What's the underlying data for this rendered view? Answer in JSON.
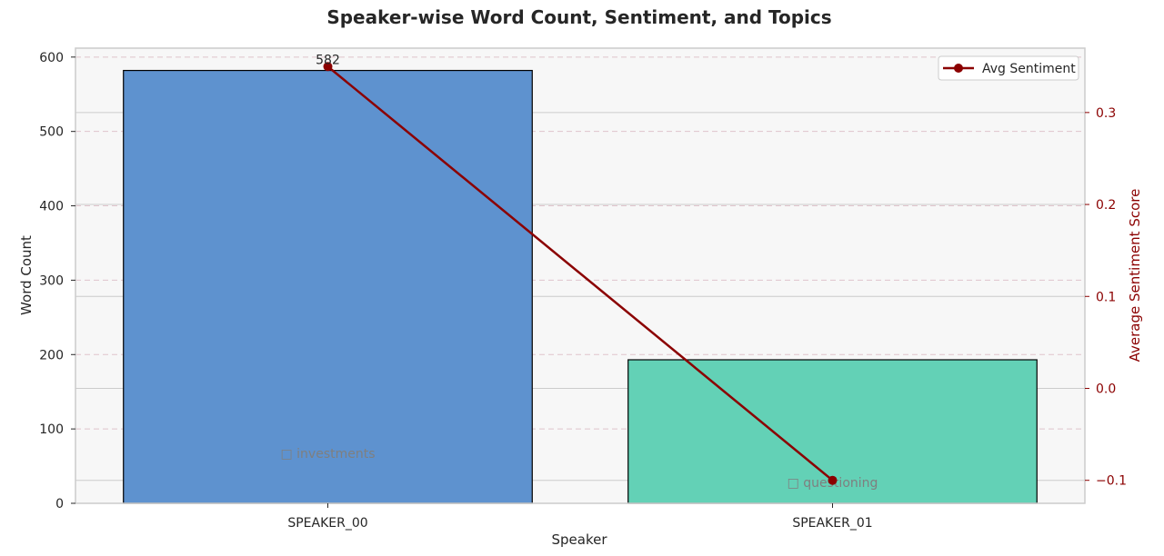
{
  "chart_data": {
    "type": "bar",
    "title": "Speaker-wise Word Count, Sentiment, and Topics",
    "xlabel": "Speaker",
    "ylabel": "Word Count",
    "y2label": "Average Sentiment Score",
    "categories": [
      "SPEAKER_00",
      "SPEAKER_01"
    ],
    "series": [
      {
        "name": "Word Count",
        "axis": "left",
        "values": [
          582,
          193
        ],
        "colors": [
          "#5e92cf",
          "#63d1b6"
        ]
      },
      {
        "name": "Avg Sentiment",
        "axis": "right",
        "type": "line",
        "values": [
          0.35,
          -0.1
        ],
        "color": "#8b0000"
      }
    ],
    "data_labels": [
      "582"
    ],
    "topics": [
      "□ investments",
      "□ questioning"
    ],
    "ylim": [
      0,
      612
    ],
    "y2lim": [
      -0.125,
      0.37
    ],
    "yticks": [
      0,
      100,
      200,
      300,
      400,
      500,
      600
    ],
    "y2ticks": [
      -0.1,
      0.0,
      0.1,
      0.2,
      0.3
    ],
    "ytick_labels": [
      "0",
      "100",
      "200",
      "300",
      "400",
      "500",
      "600"
    ],
    "y2tick_labels": [
      "−0.1",
      "0.0",
      "0.1",
      "0.2",
      "0.3"
    ],
    "legend": {
      "entries": [
        "Avg Sentiment"
      ],
      "placement": "top-right"
    },
    "grid": true,
    "colors": {
      "background": "#f7f7f7",
      "grid": "#cccccc",
      "grid_dashed": "#e0c4cc",
      "sentiment": "#8b0000"
    }
  }
}
